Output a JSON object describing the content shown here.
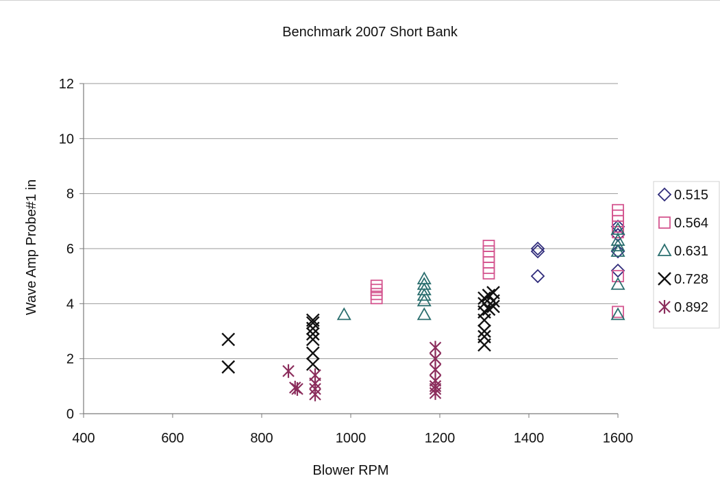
{
  "chart_data": {
    "type": "scatter",
    "title": "Benchmark 2007 Short Bank",
    "xlabel": "Blower RPM",
    "ylabel": "Wave Amp Probe#1 in",
    "xlim": [
      400,
      1600
    ],
    "ylim": [
      0,
      12
    ],
    "xticks": [
      "400",
      "600",
      "800",
      "1000",
      "1200",
      "1400",
      "1600"
    ],
    "yticks": [
      "0",
      "2",
      "4",
      "6",
      "8",
      "10",
      "12"
    ],
    "grid": "horizontal",
    "legend_position": "right",
    "series": [
      {
        "name": "0.515",
        "marker": "diamond",
        "color": "#2e2a7a",
        "points": [
          [
            1420,
            6.0
          ],
          [
            1420,
            5.9
          ],
          [
            1420,
            5.0
          ],
          [
            1600,
            5.2
          ],
          [
            1600,
            5.9
          ],
          [
            1600,
            6.5
          ],
          [
            1600,
            6.8
          ]
        ]
      },
      {
        "name": "0.564",
        "marker": "square",
        "color": "#d4558f",
        "points": [
          [
            1058,
            4.2
          ],
          [
            1058,
            4.35
          ],
          [
            1058,
            4.5
          ],
          [
            1058,
            4.65
          ],
          [
            1310,
            5.1
          ],
          [
            1310,
            5.3
          ],
          [
            1310,
            5.5
          ],
          [
            1310,
            5.7
          ],
          [
            1310,
            5.9
          ],
          [
            1310,
            6.1
          ],
          [
            1600,
            3.7
          ],
          [
            1600,
            5.0
          ],
          [
            1600,
            6.6
          ],
          [
            1600,
            6.8
          ],
          [
            1600,
            7.0
          ],
          [
            1600,
            7.2
          ],
          [
            1600,
            7.4
          ]
        ]
      },
      {
        "name": "0.631",
        "marker": "triangle",
        "color": "#2a6e6e",
        "points": [
          [
            985,
            3.6
          ],
          [
            1165,
            3.6
          ],
          [
            1165,
            4.1
          ],
          [
            1165,
            4.3
          ],
          [
            1165,
            4.5
          ],
          [
            1165,
            4.7
          ],
          [
            1165,
            4.9
          ],
          [
            1600,
            3.6
          ],
          [
            1600,
            4.7
          ],
          [
            1600,
            5.9
          ],
          [
            1600,
            6.1
          ],
          [
            1600,
            6.3
          ],
          [
            1600,
            6.7
          ]
        ]
      },
      {
        "name": "0.728",
        "marker": "x",
        "color": "#111111",
        "points": [
          [
            725,
            1.7
          ],
          [
            725,
            2.7
          ],
          [
            915,
            1.8
          ],
          [
            915,
            2.2
          ],
          [
            915,
            2.7
          ],
          [
            915,
            2.9
          ],
          [
            915,
            3.1
          ],
          [
            915,
            3.3
          ],
          [
            915,
            3.4
          ],
          [
            1300,
            2.5
          ],
          [
            1300,
            2.8
          ],
          [
            1300,
            3.0
          ],
          [
            1300,
            3.4
          ],
          [
            1300,
            3.7
          ],
          [
            1300,
            4.0
          ],
          [
            1300,
            4.2
          ],
          [
            1310,
            3.8
          ],
          [
            1310,
            4.3
          ],
          [
            1320,
            3.9
          ],
          [
            1320,
            4.1
          ],
          [
            1320,
            4.4
          ]
        ]
      },
      {
        "name": "0.892",
        "marker": "asterisk",
        "color": "#8b2d5c",
        "points": [
          [
            860,
            1.55
          ],
          [
            875,
            0.95
          ],
          [
            880,
            0.9
          ],
          [
            920,
            0.7
          ],
          [
            920,
            0.9
          ],
          [
            920,
            1.1
          ],
          [
            920,
            1.4
          ],
          [
            1190,
            0.75
          ],
          [
            1190,
            0.9
          ],
          [
            1190,
            1.0
          ],
          [
            1190,
            1.2
          ],
          [
            1190,
            1.6
          ],
          [
            1190,
            2.0
          ],
          [
            1190,
            2.4
          ]
        ]
      }
    ]
  }
}
